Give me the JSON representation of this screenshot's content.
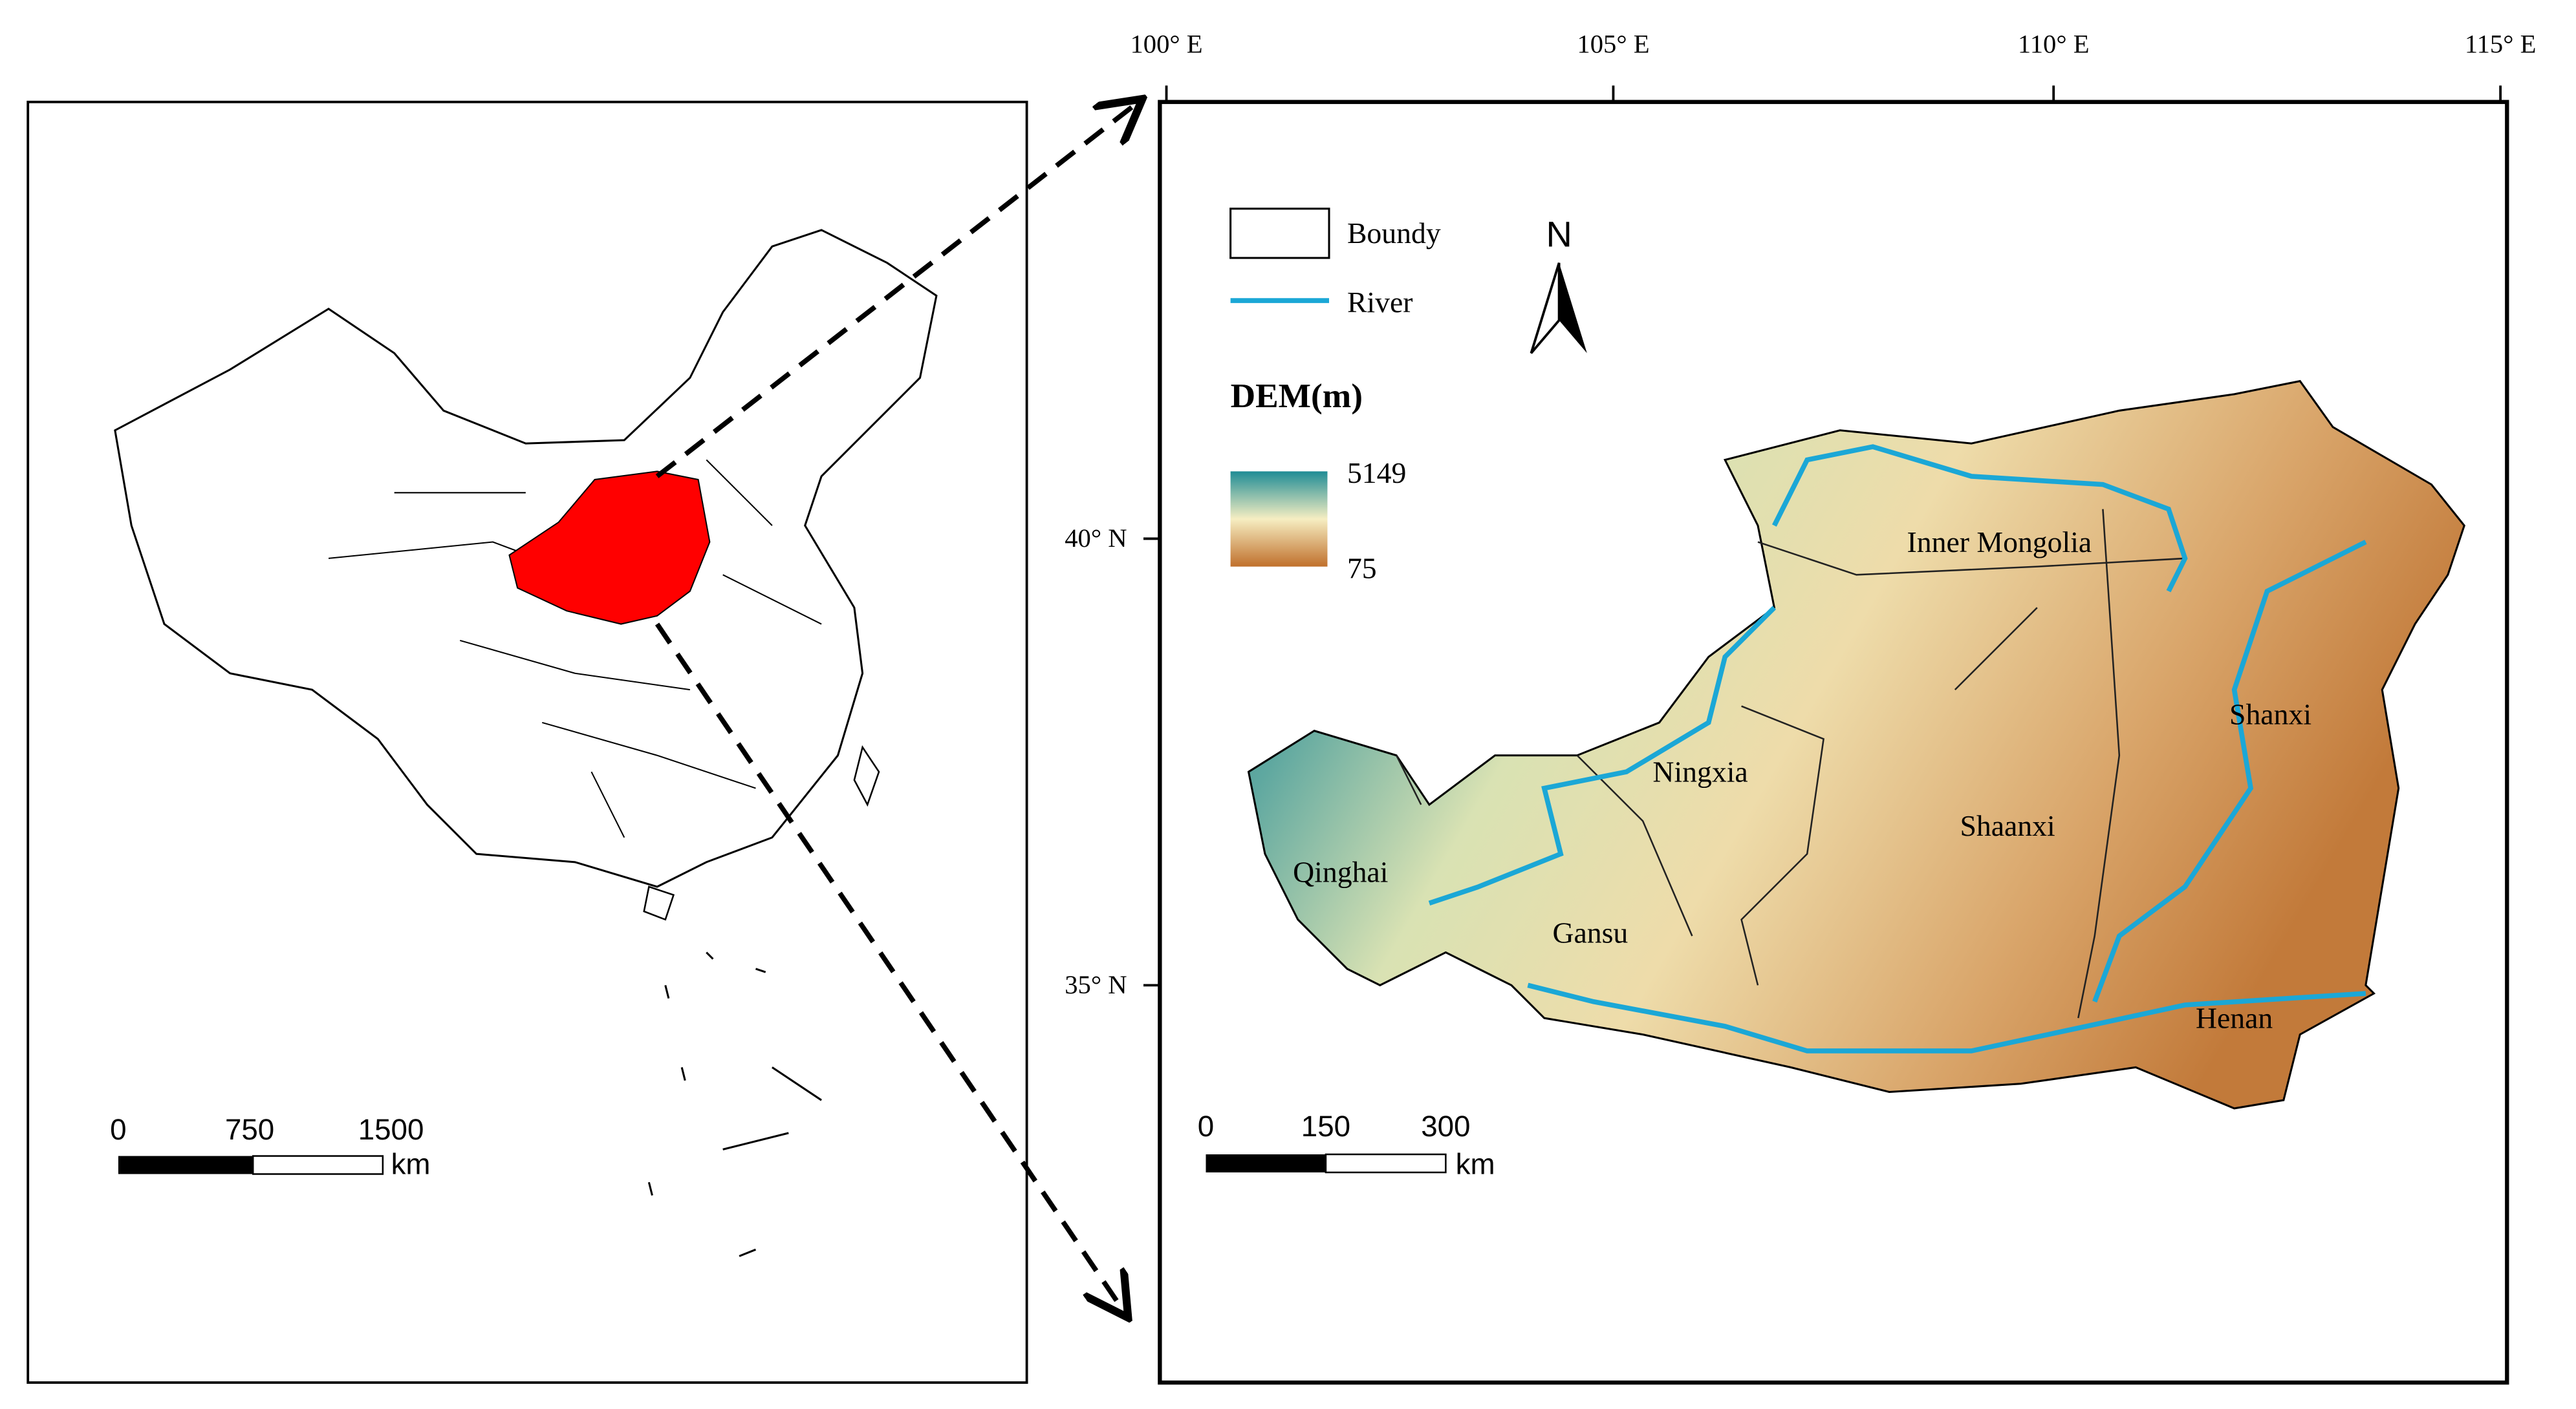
{
  "left_map": {
    "scale_bar": {
      "ticks": [
        "0",
        "750",
        "1500"
      ],
      "unit": "km"
    }
  },
  "right_map": {
    "lon_labels": [
      "100° E",
      "105° E",
      "110° E",
      "115° E"
    ],
    "lat_labels": [
      "40° N",
      "35° N"
    ],
    "legend": {
      "boundary": "Boundy",
      "river": "River",
      "dem_title": "DEM(m)",
      "dem_max": "5149",
      "dem_min": "75"
    },
    "north": "N",
    "regions": [
      "Inner Mongolia",
      "Shanxi",
      "Ningxia",
      "Shaanxi",
      "Qinghai",
      "Gansu",
      "Henan"
    ],
    "scale_bar": {
      "ticks": [
        "0",
        "150",
        "300"
      ],
      "unit": "km"
    }
  }
}
